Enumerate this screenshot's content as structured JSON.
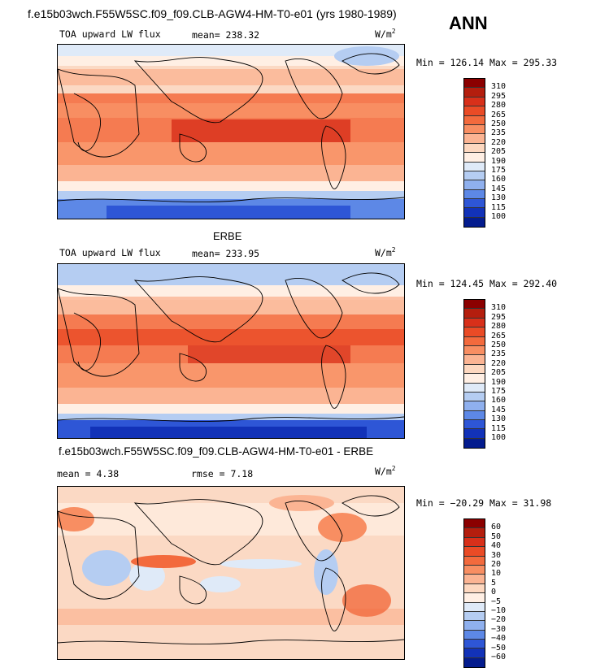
{
  "header": {
    "title": "f.e15b03wch.F55W5SC.f09_f09.CLB-AGW4-HM-T0-e01 (yrs 1980-1989)",
    "season": "ANN"
  },
  "panels": [
    {
      "title": "",
      "field": "TOA upward LW flux",
      "mean": "mean= 238.32",
      "units": "W/m",
      "units_sup": "2",
      "minmax": "Min = 126.14 Max = 295.33",
      "levels": [
        "310",
        "295",
        "280",
        "265",
        "250",
        "235",
        "220",
        "205",
        "190",
        "175",
        "160",
        "145",
        "130",
        "115",
        "100"
      ],
      "colors": [
        "#8b0000",
        "#b41e0e",
        "#d8301a",
        "#ea4b26",
        "#f36a3d",
        "#f88e62",
        "#fbb493",
        "#fdd8c0",
        "#ffefe4",
        "#dfeaf8",
        "#b5cdf2",
        "#8fb0ee",
        "#5d88e6",
        "#2e56d6",
        "#1232b8",
        "#041c8e"
      ]
    },
    {
      "title": "ERBE",
      "field": "TOA upward LW flux",
      "mean": "mean= 233.95",
      "units": "W/m",
      "units_sup": "2",
      "minmax": "Min = 124.45 Max = 292.40",
      "levels": [
        "310",
        "295",
        "280",
        "265",
        "250",
        "235",
        "220",
        "205",
        "190",
        "175",
        "160",
        "145",
        "130",
        "115",
        "100"
      ],
      "colors": [
        "#8b0000",
        "#b41e0e",
        "#d8301a",
        "#ea4b26",
        "#f36a3d",
        "#f88e62",
        "#fbb493",
        "#fdd8c0",
        "#ffefe4",
        "#dfeaf8",
        "#b5cdf2",
        "#8fb0ee",
        "#5d88e6",
        "#2e56d6",
        "#1232b8",
        "#041c8e"
      ]
    },
    {
      "title": "f.e15b03wch.F55W5SC.f09_f09.CLB-AGW4-HM-T0-e01 - ERBE",
      "mean": "mean =    4.38",
      "rmse": "rmse =    7.18",
      "units": "W/m",
      "units_sup": "2",
      "minmax": "Min = −20.29 Max =  31.98",
      "levels": [
        "60",
        "50",
        "40",
        "30",
        "20",
        "10",
        "5",
        "0",
        "−5",
        "−10",
        "−20",
        "−30",
        "−40",
        "−50",
        "−60"
      ],
      "colors": [
        "#8b0000",
        "#b41e0e",
        "#d8301a",
        "#ea4b26",
        "#f36a3d",
        "#f88e62",
        "#fbb493",
        "#fdd8c0",
        "#ffefe4",
        "#dfeaf8",
        "#b5cdf2",
        "#8fb0ee",
        "#5d88e6",
        "#2e56d6",
        "#1232b8",
        "#041c8e"
      ]
    }
  ]
}
